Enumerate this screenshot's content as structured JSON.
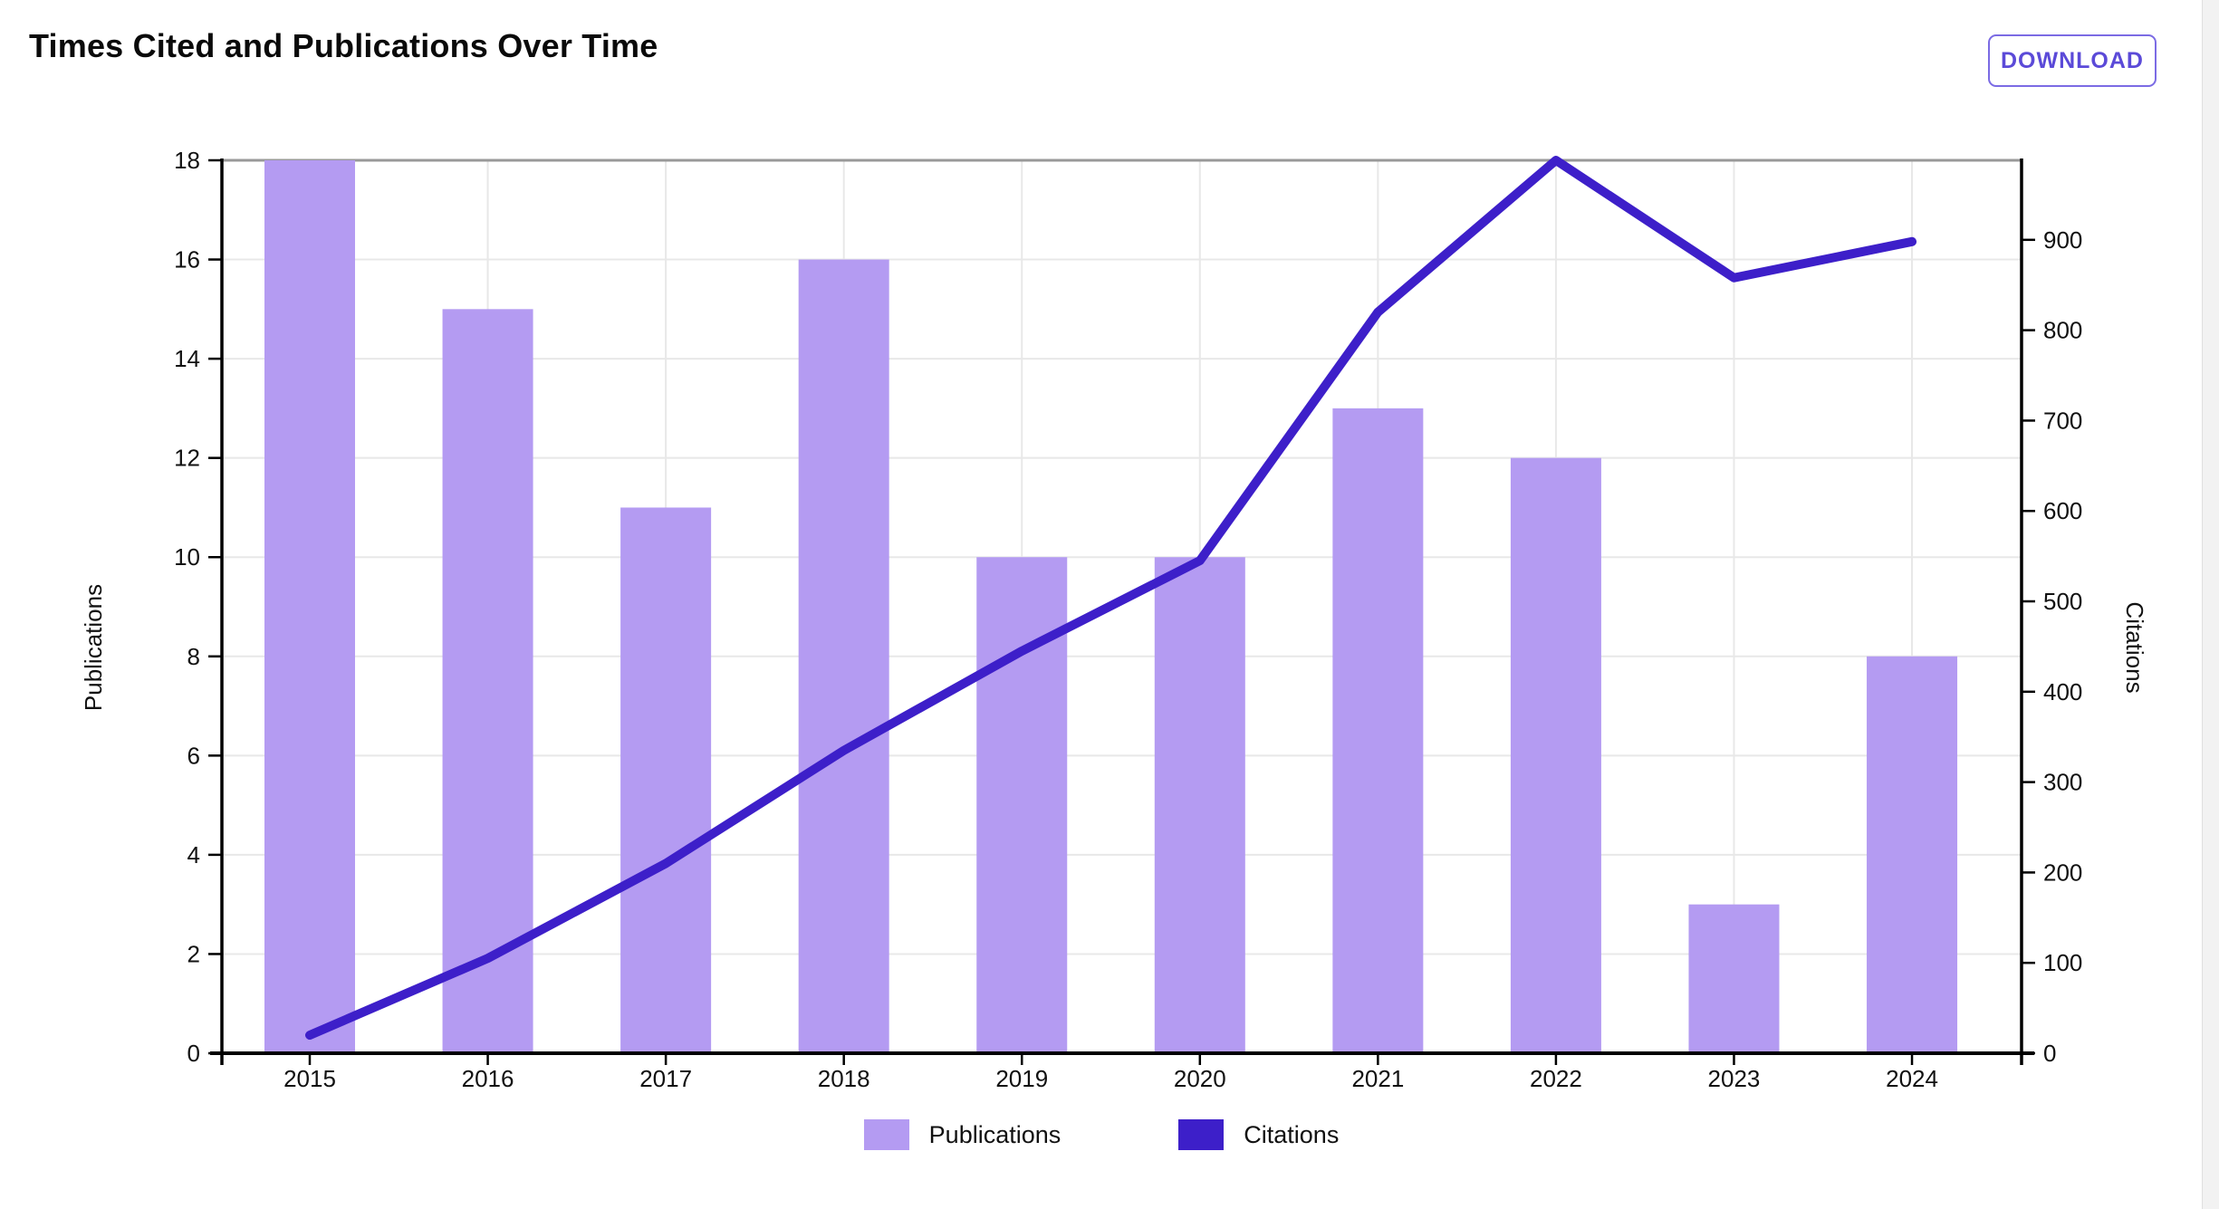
{
  "header": {
    "title": "Times Cited and Publications Over Time",
    "download_label": "DOWNLOAD"
  },
  "chart_data": {
    "type": "bar+line",
    "title": "Times Cited and Publications Over Time",
    "categories": [
      "2015",
      "2016",
      "2017",
      "2018",
      "2019",
      "2020",
      "2021",
      "2022",
      "2023",
      "2024"
    ],
    "series": [
      {
        "name": "Publications",
        "type": "bar",
        "axis": "left",
        "values": [
          18,
          15,
          11,
          16,
          10,
          10,
          13,
          12,
          3,
          8
        ]
      },
      {
        "name": "Citations",
        "type": "line",
        "axis": "right",
        "values": [
          20,
          105,
          210,
          335,
          445,
          545,
          820,
          988,
          858,
          898
        ]
      }
    ],
    "left_axis": {
      "label": "Publications",
      "min": 0,
      "max": 18,
      "tick_step": 2,
      "ticks": [
        0,
        2,
        4,
        6,
        8,
        10,
        12,
        14,
        16,
        18
      ]
    },
    "right_axis": {
      "label": "Citations",
      "min": 0,
      "max": 988,
      "tick_step": 100,
      "ticks": [
        0,
        100,
        200,
        300,
        400,
        500,
        600,
        700,
        800,
        900
      ]
    },
    "grid": true,
    "legend_position": "bottom",
    "legend": [
      "Publications",
      "Citations"
    ]
  },
  "colors": {
    "bar": "#b49bf2",
    "line": "#3d1fc9",
    "grid": "#e8e8e8",
    "axis": "#000000",
    "top_border": "#999999",
    "tick_text": "#111111",
    "title_text": "#0a0a0a",
    "button_text": "#5b4ad8",
    "button_border": "#7b6be4",
    "scrollbar_track": "#f2f2f2"
  }
}
